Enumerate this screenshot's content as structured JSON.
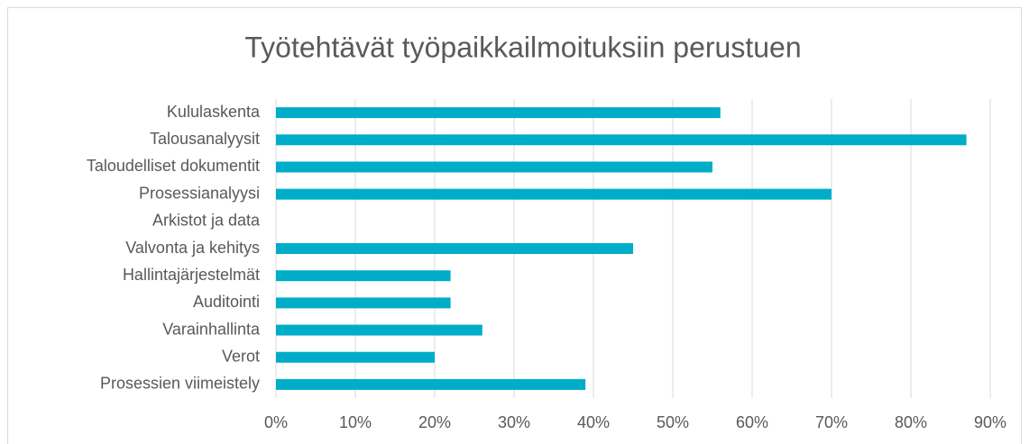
{
  "chart_data": {
    "type": "bar",
    "orientation": "horizontal",
    "title": "Työtehtävät työpaikkailmoituksiin perustuen",
    "categories": [
      "Kululaskenta",
      "Talousanalyysit",
      "Taloudelliset dokumentit",
      "Prosessianalyysi",
      "Arkistot ja data",
      "Valvonta ja kehitys",
      "Hallintajärjestelmät",
      "Auditointi",
      "Varainhallinta",
      "Verot",
      "Prosessien viimeistely"
    ],
    "values": [
      56,
      87,
      55,
      70,
      0,
      45,
      22,
      22,
      26,
      20,
      39
    ],
    "color": "#00adc8",
    "xlim": [
      0,
      90
    ],
    "xticks": [
      {
        "value": 0,
        "label": "0%"
      },
      {
        "value": 10,
        "label": "10%"
      },
      {
        "value": 20,
        "label": "20%"
      },
      {
        "value": 30,
        "label": "30%"
      },
      {
        "value": 40,
        "label": "40%"
      },
      {
        "value": 50,
        "label": "50%"
      },
      {
        "value": 60,
        "label": "60%"
      },
      {
        "value": 70,
        "label": "70%"
      },
      {
        "value": 80,
        "label": "80%"
      },
      {
        "value": 90,
        "label": "90%"
      }
    ],
    "grid": true
  }
}
